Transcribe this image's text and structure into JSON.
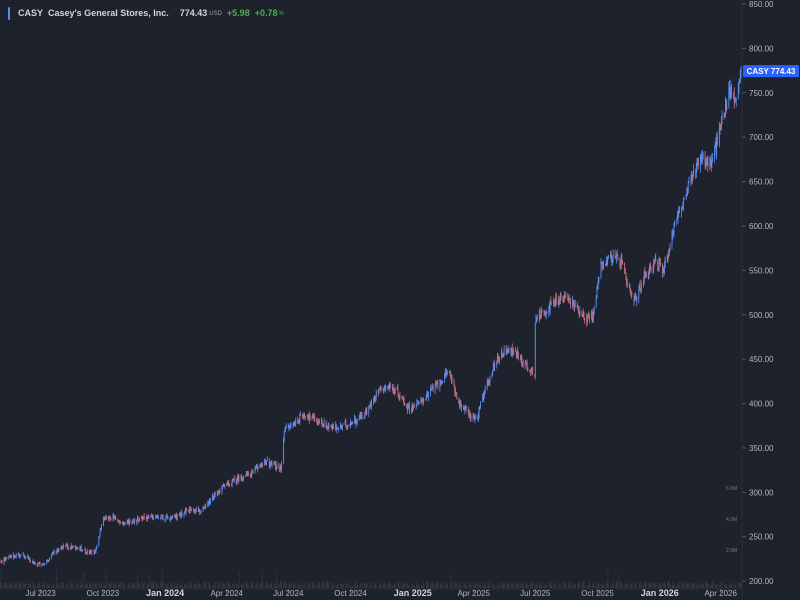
{
  "legend": {
    "symbol": "CASY",
    "name": "Casey's General Stores, Inc.",
    "price": "774.43",
    "currency": "USD",
    "change": "+5.98",
    "change_pct": "+0.78",
    "pct_unit": "%"
  },
  "colors": {
    "background": "#1e222d",
    "up": "#5b8def",
    "down": "#c8707e",
    "axis_text": "#b2b5be",
    "badge": "#2962ff",
    "marker": "#5b8def"
  },
  "price_badge": {
    "symbol": "CASY",
    "value": "774.43"
  },
  "volume_axis": {
    "labels": [
      "6.0M",
      "4.0M",
      "2.0M"
    ],
    "values": [
      6,
      4,
      2
    ]
  },
  "chart_data": {
    "type": "candlestick",
    "x_range": [
      "2023-05-02",
      "2026-05-01"
    ],
    "ylim": [
      190,
      850
    ],
    "y_ticks": [
      200,
      250,
      300,
      350,
      400,
      450,
      500,
      550,
      600,
      650,
      700,
      750,
      800,
      850
    ],
    "y_tick_labels": [
      "200.00",
      "250.00",
      "300.00",
      "350.00",
      "400.00",
      "450.00",
      "500.00",
      "550.00",
      "600.00",
      "650.00",
      "700.00",
      "750.00",
      "800.00",
      "850.00"
    ],
    "x_ticks": [
      {
        "label": "Jul 2023",
        "date": "2023-07-01",
        "bold": false
      },
      {
        "label": "Oct 2023",
        "date": "2023-10-01",
        "bold": false
      },
      {
        "label": "Jan 2024",
        "date": "2024-01-01",
        "bold": true
      },
      {
        "label": "Apr 2024",
        "date": "2024-04-01",
        "bold": false
      },
      {
        "label": "Jul 2024",
        "date": "2024-07-01",
        "bold": false
      },
      {
        "label": "Oct 2024",
        "date": "2024-10-01",
        "bold": false
      },
      {
        "label": "Jan 2025",
        "date": "2025-01-01",
        "bold": true
      },
      {
        "label": "Apr 2025",
        "date": "2025-04-01",
        "bold": false
      },
      {
        "label": "Jul 2025",
        "date": "2025-07-01",
        "bold": false
      },
      {
        "label": "Oct 2025",
        "date": "2025-10-01",
        "bold": false
      },
      {
        "label": "Jan 2026",
        "date": "2026-01-01",
        "bold": true
      },
      {
        "label": "Apr 2026",
        "date": "2026-04-01",
        "bold": false
      }
    ],
    "close_path": [
      [
        "2023-05-02",
        222
      ],
      [
        "2023-05-20",
        228
      ],
      [
        "2023-06-05",
        230
      ],
      [
        "2023-06-20",
        220
      ],
      [
        "2023-07-05",
        218
      ],
      [
        "2023-07-20",
        232
      ],
      [
        "2023-08-05",
        240
      ],
      [
        "2023-08-20",
        238
      ],
      [
        "2023-09-05",
        234
      ],
      [
        "2023-09-20",
        232
      ],
      [
        "2023-10-01",
        270
      ],
      [
        "2023-10-15",
        272
      ],
      [
        "2023-11-01",
        265
      ],
      [
        "2023-11-15",
        268
      ],
      [
        "2023-12-01",
        272
      ],
      [
        "2023-12-20",
        272
      ],
      [
        "2024-01-10",
        270
      ],
      [
        "2024-01-25",
        276
      ],
      [
        "2024-02-10",
        282
      ],
      [
        "2024-02-25",
        278
      ],
      [
        "2024-03-10",
        292
      ],
      [
        "2024-03-25",
        305
      ],
      [
        "2024-04-10",
        312
      ],
      [
        "2024-04-25",
        318
      ],
      [
        "2024-05-10",
        322
      ],
      [
        "2024-05-25",
        335
      ],
      [
        "2024-06-10",
        330
      ],
      [
        "2024-06-20",
        326
      ],
      [
        "2024-06-25",
        370
      ],
      [
        "2024-07-10",
        378
      ],
      [
        "2024-07-25",
        388
      ],
      [
        "2024-08-10",
        382
      ],
      [
        "2024-08-25",
        375
      ],
      [
        "2024-09-10",
        372
      ],
      [
        "2024-09-25",
        376
      ],
      [
        "2024-10-10",
        382
      ],
      [
        "2024-10-25",
        390
      ],
      [
        "2024-11-10",
        415
      ],
      [
        "2024-11-25",
        420
      ],
      [
        "2024-12-10",
        412
      ],
      [
        "2024-12-25",
        395
      ],
      [
        "2025-01-10",
        400
      ],
      [
        "2025-01-25",
        412
      ],
      [
        "2025-02-10",
        425
      ],
      [
        "2025-02-25",
        435
      ],
      [
        "2025-03-10",
        400
      ],
      [
        "2025-03-25",
        388
      ],
      [
        "2025-04-05",
        382
      ],
      [
        "2025-04-20",
        420
      ],
      [
        "2025-05-05",
        450
      ],
      [
        "2025-05-20",
        462
      ],
      [
        "2025-06-05",
        455
      ],
      [
        "2025-06-20",
        440
      ],
      [
        "2025-06-30",
        435
      ],
      [
        "2025-07-01",
        495
      ],
      [
        "2025-07-15",
        505
      ],
      [
        "2025-08-01",
        515
      ],
      [
        "2025-08-15",
        520
      ],
      [
        "2025-09-01",
        508
      ],
      [
        "2025-09-15",
        495
      ],
      [
        "2025-09-25",
        500
      ],
      [
        "2025-10-05",
        555
      ],
      [
        "2025-10-20",
        565
      ],
      [
        "2025-11-05",
        560
      ],
      [
        "2025-11-15",
        530
      ],
      [
        "2025-11-25",
        515
      ],
      [
        "2025-12-10",
        545
      ],
      [
        "2025-12-25",
        560
      ],
      [
        "2026-01-05",
        550
      ],
      [
        "2026-01-15",
        575
      ],
      [
        "2026-01-25",
        610
      ],
      [
        "2026-02-05",
        625
      ],
      [
        "2026-02-15",
        650
      ],
      [
        "2026-02-25",
        670
      ],
      [
        "2026-03-05",
        680
      ],
      [
        "2026-03-15",
        665
      ],
      [
        "2026-03-25",
        690
      ],
      [
        "2026-04-05",
        725
      ],
      [
        "2026-04-15",
        755
      ],
      [
        "2026-04-22",
        740
      ],
      [
        "2026-05-01",
        774.43
      ]
    ],
    "last_close": 774.43
  }
}
